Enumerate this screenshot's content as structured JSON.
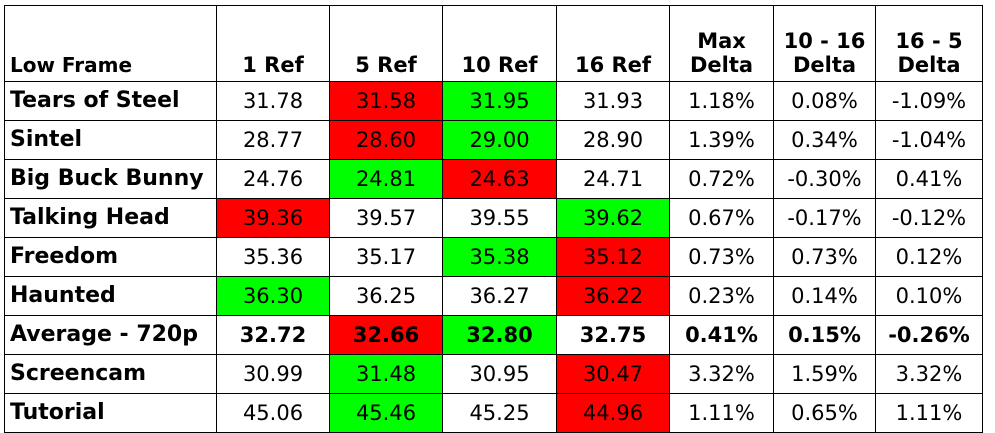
{
  "colors": {
    "red": "#ff0000",
    "green": "#00ff00",
    "none": "#ffffff"
  },
  "header": {
    "corner": "Low Frame",
    "columns": [
      {
        "l1": "",
        "l2": "1 Ref"
      },
      {
        "l1": "",
        "l2": "5 Ref"
      },
      {
        "l1": "",
        "l2": "10 Ref"
      },
      {
        "l1": "",
        "l2": "16 Ref"
      },
      {
        "l1": "Max",
        "l2": "Delta"
      },
      {
        "l1": "10 - 16",
        "l2": "Delta"
      },
      {
        "l1": "16 - 5",
        "l2": "Delta"
      }
    ]
  },
  "rows": [
    {
      "label": "Tears of Steel",
      "bold": false,
      "cells": [
        "31.78",
        "31.58",
        "31.95",
        "31.93",
        "1.18%",
        "0.08%",
        "-1.09%"
      ],
      "highlights": [
        "none",
        "red",
        "green",
        "none",
        "none",
        "none",
        "none"
      ]
    },
    {
      "label": "Sintel",
      "bold": false,
      "cells": [
        "28.77",
        "28.60",
        "29.00",
        "28.90",
        "1.39%",
        "0.34%",
        "-1.04%"
      ],
      "highlights": [
        "none",
        "red",
        "green",
        "none",
        "none",
        "none",
        "none"
      ]
    },
    {
      "label": "Big Buck Bunny",
      "bold": false,
      "cells": [
        "24.76",
        "24.81",
        "24.63",
        "24.71",
        "0.72%",
        "-0.30%",
        "0.41%"
      ],
      "highlights": [
        "none",
        "green",
        "red",
        "none",
        "none",
        "none",
        "none"
      ]
    },
    {
      "label": "Talking Head",
      "bold": false,
      "cells": [
        "39.36",
        "39.57",
        "39.55",
        "39.62",
        "0.67%",
        "-0.17%",
        "-0.12%"
      ],
      "highlights": [
        "red",
        "none",
        "none",
        "green",
        "none",
        "none",
        "none"
      ]
    },
    {
      "label": "Freedom",
      "bold": false,
      "cells": [
        "35.36",
        "35.17",
        "35.38",
        "35.12",
        "0.73%",
        "0.73%",
        "0.12%"
      ],
      "highlights": [
        "none",
        "none",
        "green",
        "red",
        "none",
        "none",
        "none"
      ]
    },
    {
      "label": "Haunted",
      "bold": false,
      "cells": [
        "36.30",
        "36.25",
        "36.27",
        "36.22",
        "0.23%",
        "0.14%",
        "0.10%"
      ],
      "highlights": [
        "green",
        "none",
        "none",
        "red",
        "none",
        "none",
        "none"
      ]
    },
    {
      "label": "Average - 720p",
      "bold": true,
      "cells": [
        "32.72",
        "32.66",
        "32.80",
        "32.75",
        "0.41%",
        "0.15%",
        "-0.26%"
      ],
      "highlights": [
        "none",
        "red",
        "green",
        "none",
        "none",
        "none",
        "none"
      ]
    },
    {
      "label": "Screencam",
      "bold": false,
      "cells": [
        "30.99",
        "31.48",
        "30.95",
        "30.47",
        "3.32%",
        "1.59%",
        "3.32%"
      ],
      "highlights": [
        "none",
        "green",
        "none",
        "red",
        "none",
        "none",
        "none"
      ]
    },
    {
      "label": "Tutorial",
      "bold": false,
      "cells": [
        "45.06",
        "45.46",
        "45.25",
        "44.96",
        "1.11%",
        "0.65%",
        "1.11%"
      ],
      "highlights": [
        "none",
        "green",
        "none",
        "red",
        "none",
        "none",
        "none"
      ]
    }
  ]
}
